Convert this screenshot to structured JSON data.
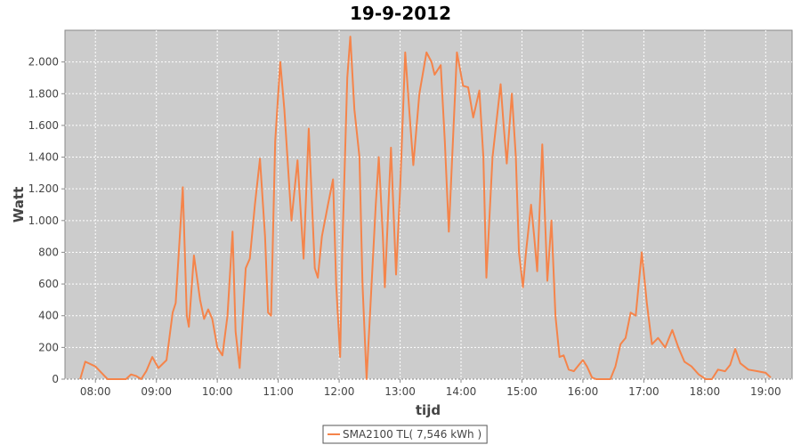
{
  "chart_data": {
    "type": "line",
    "title": "19-9-2012",
    "x_label": "tijd",
    "y_label": "Watt",
    "xlim": [
      "07:30",
      "19:26"
    ],
    "xticks": [
      "08:00",
      "09:00",
      "10:00",
      "11:00",
      "12:00",
      "13:00",
      "14:00",
      "15:00",
      "16:00",
      "17:00",
      "18:00",
      "19:00"
    ],
    "ylim": [
      0,
      2200
    ],
    "yticks": [
      0,
      200,
      400,
      600,
      800,
      {
        "value": 1000,
        "label": "1.000"
      },
      {
        "value": 1200,
        "label": "1.200"
      },
      {
        "value": 1400,
        "label": "1.400"
      },
      {
        "value": 1600,
        "label": "1.600"
      },
      {
        "value": 1800,
        "label": "1.800"
      },
      {
        "value": 2000,
        "label": "2.000"
      }
    ],
    "grid": true,
    "legend": "bottom",
    "x": [
      "07:45",
      "07:50",
      "08:00",
      "08:06",
      "08:12",
      "08:30",
      "08:35",
      "08:40",
      "08:45",
      "08:50",
      "08:56",
      "09:02",
      "09:10",
      "09:16",
      "09:19",
      "09:26",
      "09:30",
      "09:32",
      "09:37",
      "09:43",
      "09:47",
      "09:51",
      "09:55",
      "10:00",
      "10:05",
      "10:10",
      "10:15",
      "10:18",
      "10:22",
      "10:28",
      "10:32",
      "10:37",
      "10:42",
      "10:47",
      "10:50",
      "10:53",
      "10:57",
      "11:02",
      "11:06",
      "11:13",
      "11:19",
      "11:25",
      "11:30",
      "11:36",
      "11:39",
      "11:43",
      "11:49",
      "11:54",
      "11:57",
      "12:01",
      "12:03",
      "12:08",
      "12:11",
      "12:15",
      "12:20",
      "12:23",
      "12:27",
      "12:36",
      "12:39",
      "12:43",
      "12:45",
      "12:51",
      "12:56",
      "13:00",
      "13:05",
      "13:09",
      "13:13",
      "13:19",
      "13:26",
      "13:31",
      "13:34",
      "13:40",
      "13:44",
      "13:48",
      "13:52",
      "13:56",
      "14:02",
      "14:07",
      "14:12",
      "14:18",
      "14:22",
      "14:25",
      "14:31",
      "14:39",
      "14:42",
      "14:45",
      "14:50",
      "14:54",
      "14:57",
      "15:01",
      "15:04",
      "15:09",
      "15:12",
      "15:15",
      "15:20",
      "15:25",
      "15:29",
      "15:33",
      "15:37",
      "15:41",
      "15:46",
      "15:51",
      "15:56",
      "16:00",
      "16:04",
      "16:09",
      "16:13",
      "16:27",
      "16:32",
      "16:37",
      "16:42",
      "16:47",
      "16:52",
      "16:58",
      "17:03",
      "17:08",
      "17:14",
      "17:21",
      "17:28",
      "17:34",
      "17:40",
      "17:47",
      "17:54",
      "18:01",
      "18:07",
      "18:13",
      "18:20",
      "18:25",
      "18:30",
      "18:35",
      "18:43",
      "18:52",
      "19:00",
      "19:05"
    ],
    "series": [
      {
        "name": "SMA2100 TL( 7,546 kWh )",
        "color": "#f5844a",
        "values": [
          0,
          110,
          80,
          40,
          0,
          0,
          30,
          20,
          0,
          50,
          140,
          70,
          120,
          420,
          480,
          1210,
          400,
          330,
          780,
          500,
          380,
          440,
          380,
          200,
          150,
          400,
          930,
          300,
          70,
          700,
          760,
          1100,
          1390,
          900,
          420,
          400,
          1500,
          2000,
          1700,
          1000,
          1380,
          760,
          1580,
          700,
          640,
          900,
          1100,
          1260,
          600,
          140,
          800,
          1900,
          2160,
          1700,
          1400,
          600,
          0,
          1100,
          1400,
          900,
          580,
          1460,
          660,
          1200,
          2060,
          1700,
          1350,
          1800,
          2060,
          2000,
          1920,
          1980,
          1500,
          930,
          1500,
          2060,
          1850,
          1840,
          1650,
          1820,
          1400,
          640,
          1400,
          1860,
          1600,
          1360,
          1800,
          1400,
          800,
          580,
          800,
          1100,
          900,
          680,
          1480,
          620,
          1000,
          400,
          140,
          150,
          60,
          50,
          90,
          120,
          80,
          10,
          0,
          0,
          80,
          220,
          260,
          420,
          400,
          800,
          480,
          220,
          260,
          200,
          310,
          200,
          110,
          80,
          30,
          0,
          0,
          60,
          50,
          90,
          190,
          100,
          60,
          50,
          40,
          10
        ]
      }
    ]
  }
}
